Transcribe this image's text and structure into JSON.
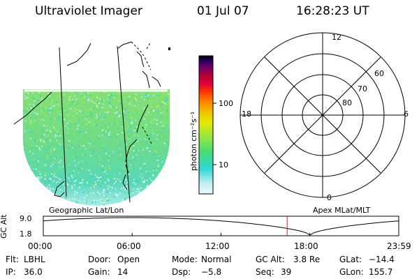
{
  "header": {
    "instrument": "Ultraviolet Imager",
    "date": "01 Jul 07",
    "time": "16:28:23 UT"
  },
  "image_panel": {
    "label": "Geographic Lat/Lon"
  },
  "colorbar": {
    "unit_label": "photon cm⁻²s⁻¹",
    "ticks": [
      {
        "value": 100,
        "label": "100"
      },
      {
        "value": 10,
        "label": "10"
      }
    ],
    "scale": "log",
    "colors": [
      "#e8f6fa",
      "#c0eef0",
      "#30d8d8",
      "#44dd77",
      "#99e83a",
      "#e8e800",
      "#f0c800",
      "#ff8c00",
      "#ff3300",
      "#e00040",
      "#b00030",
      "#6a0070",
      "#200050",
      "#000000"
    ]
  },
  "polar_plot": {
    "label": "Apex MLat/MLT",
    "mlt_labels": [
      "12",
      "6",
      "0",
      "18"
    ],
    "lat_labels": [
      "60",
      "70",
      "80"
    ]
  },
  "timeline": {
    "ylabel": "GC Alt",
    "ymax_label": "9.0",
    "ymin_label": "1.8",
    "x_ticks": [
      "00:00",
      "06:00",
      "12:00",
      "18:00",
      "23:59"
    ],
    "current_time_marker": "16:28"
  },
  "footer": {
    "row1": [
      {
        "key": "Flt:",
        "value": "LBHL"
      },
      {
        "key": "Door:",
        "value": "Open"
      },
      {
        "key": "Mode:",
        "value": "Normal"
      },
      {
        "key": "GC Alt:",
        "value": "3.8 Re"
      },
      {
        "key": "GLat:",
        "value": "−14.4"
      }
    ],
    "row2": [
      {
        "key": "IP:",
        "value": "36.0"
      },
      {
        "key": "Gain:",
        "value": "14"
      },
      {
        "key": "Dsp:",
        "value": "−5.8"
      },
      {
        "key": "Seq:",
        "value": "39"
      },
      {
        "key": "GLon:",
        "value": "155.7"
      }
    ]
  },
  "colors": {
    "marker": "#cc2222",
    "background": "#ffffff",
    "foreground": "#000000"
  }
}
